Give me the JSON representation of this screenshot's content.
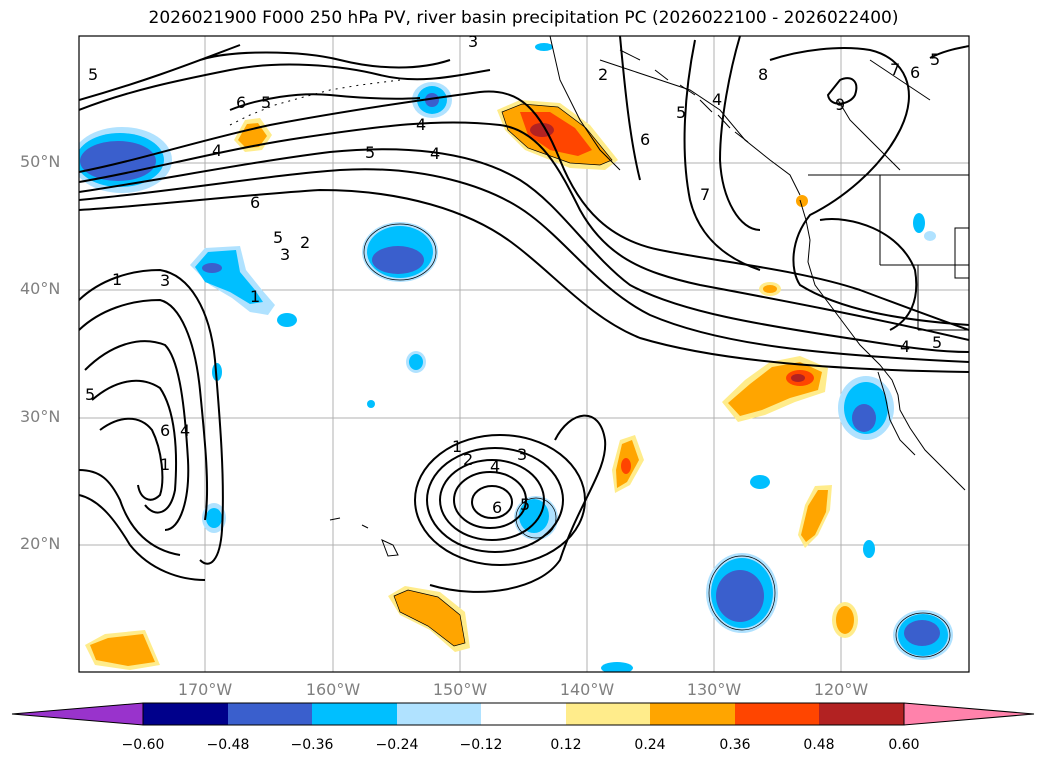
{
  "title": "2026021900 F000 250 hPa PV, river basin precipitation PC (2026022100 - 2026022400)",
  "lat_labels": [
    "50°N",
    "40°N",
    "30°N",
    "20°N"
  ],
  "lon_labels": [
    "170°W",
    "160°W",
    "150°W",
    "140°W",
    "130°W",
    "120°W"
  ],
  "colorbar": {
    "ticks": [
      "−0.60",
      "−0.48",
      "−0.36",
      "−0.24",
      "−0.12",
      "0.12",
      "0.24",
      "0.36",
      "0.48",
      "0.60"
    ],
    "colors": [
      "#9933cc",
      "#00008b",
      "#3a5fcd",
      "#00bfff",
      "#b0e2ff",
      "#ffffff",
      "#ffec8b",
      "#ffa500",
      "#ff4500",
      "#b22222",
      "#ff82ab"
    ]
  },
  "contour_labels": [
    "5",
    "6",
    "5",
    "4",
    "5",
    "4",
    "3",
    "2",
    "8",
    "7",
    "6",
    "5",
    "4",
    "9",
    "6",
    "5",
    "3",
    "2",
    "1",
    "3",
    "1",
    "5",
    "6",
    "4",
    "1",
    "1",
    "2",
    "4",
    "3",
    "6",
    "5",
    "4",
    "5",
    "7",
    "6",
    "5",
    "4"
  ],
  "gridlines": "on",
  "projection": "equirectangular, 10°N–60°N, 180°W–110°W"
}
